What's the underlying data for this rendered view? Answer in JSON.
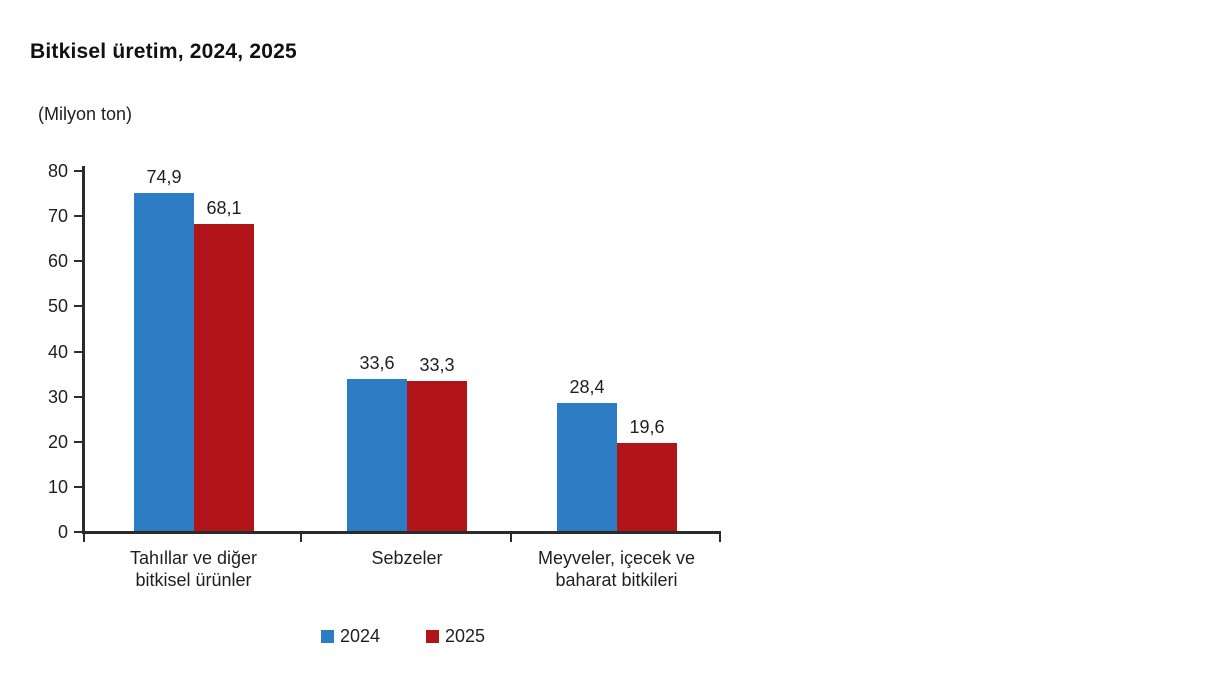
{
  "title": "Bitkisel üretim, 2024, 2025",
  "subtitle": "(Milyon ton)",
  "colors": {
    "series_2024": "#2C7DC4",
    "series_2025": "#B11519",
    "axis": "#2B2B2B",
    "text": "#1F1F1F",
    "background": "#FFFFFF"
  },
  "legend": {
    "items": [
      {
        "label": "2024",
        "color": "#2C7DC4"
      },
      {
        "label": "2025",
        "color": "#B11519"
      }
    ]
  },
  "chart_data": {
    "type": "bar",
    "title": "Bitkisel üretim, 2024, 2025",
    "unit_label": "(Milyon ton)",
    "categories": [
      "Tahıllar ve diğer bitkisel ürünler",
      "Sebzeler",
      "Meyveler, içecek ve baharat bitkileri"
    ],
    "category_label_lines": [
      [
        "Tahıllar ve diğer",
        "bitkisel ürünler"
      ],
      [
        "Sebzeler"
      ],
      [
        "Meyveler, içecek ve",
        "baharat bitkileri"
      ]
    ],
    "series": [
      {
        "name": "2024",
        "color": "#2C7DC4",
        "values": [
          74.9,
          33.6,
          28.4
        ],
        "value_labels": [
          "74,9",
          "33,6",
          "28,4"
        ]
      },
      {
        "name": "2025",
        "color": "#B11519",
        "values": [
          68.1,
          33.3,
          19.6
        ],
        "value_labels": [
          "68,1",
          "33,3",
          "19,6"
        ]
      }
    ],
    "xlabel": "",
    "ylabel": "",
    "ylim": [
      0,
      80
    ],
    "yticks": [
      0,
      10,
      20,
      30,
      40,
      50,
      60,
      70,
      80
    ],
    "grid": false,
    "legend_position": "bottom"
  }
}
